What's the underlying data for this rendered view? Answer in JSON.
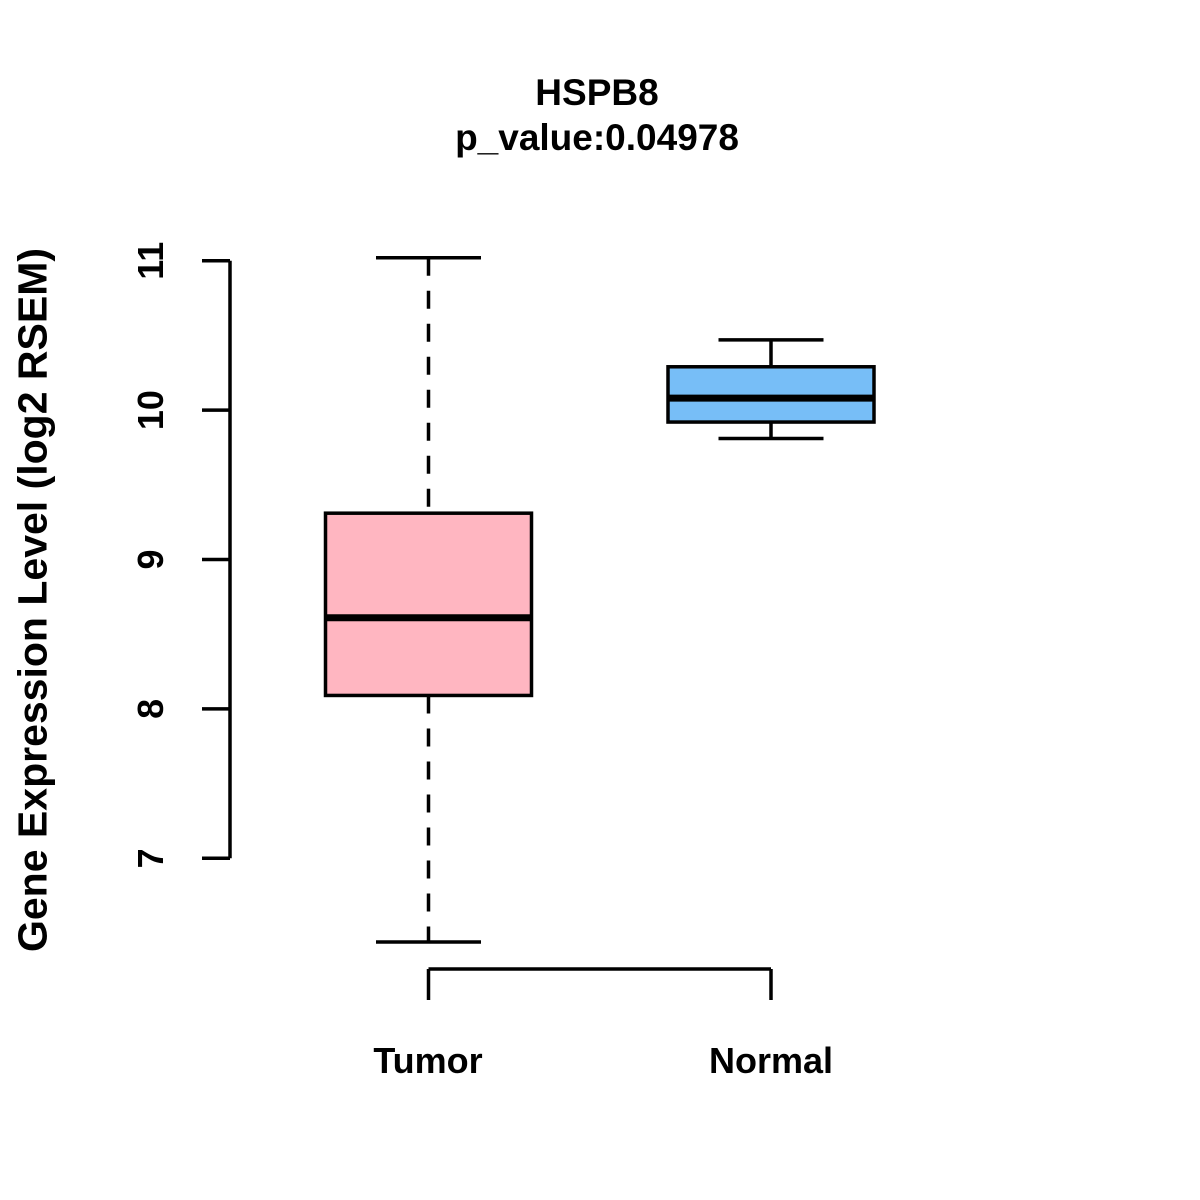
{
  "chart_data": {
    "type": "boxplot",
    "title": "HSPB8",
    "subtitle": "p_value:0.04978",
    "p_value": 0.04978,
    "ylabel": "Gene Expression Level (log2 RSEM)",
    "xlabel": "",
    "yticks": [
      7,
      8,
      9,
      10,
      11
    ],
    "ytick_range": [
      7,
      11
    ],
    "ylim": [
      6.2,
      11.2
    ],
    "grid": false,
    "legend": "none",
    "categories": [
      "Tumor",
      "Normal"
    ],
    "groups": [
      {
        "name": "Tumor",
        "fill_color": "#FFB6C1",
        "whisker_low": 6.44,
        "q1": 8.09,
        "median": 8.61,
        "q3": 9.31,
        "whisker_high": 11.02,
        "whisker_line_style": "dashed",
        "outliers": []
      },
      {
        "name": "Normal",
        "fill_color": "#77BEF7",
        "whisker_low": 9.81,
        "q1": 9.92,
        "median": 10.08,
        "q3": 10.29,
        "whisker_high": 10.47,
        "whisker_line_style": "solid",
        "outliers": []
      }
    ],
    "colors": {
      "box_border": "#000000",
      "median_line": "#000000",
      "axis": "#000000",
      "text": "#000000",
      "background": "#FFFFFF"
    }
  }
}
